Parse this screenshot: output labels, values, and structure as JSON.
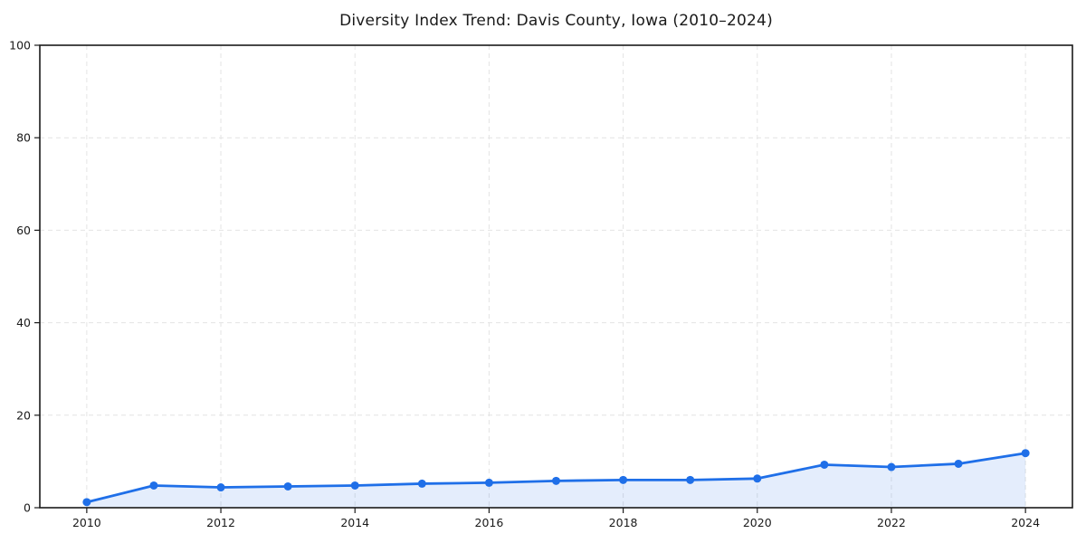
{
  "chart_data": {
    "type": "line",
    "title": "Diversity Index Trend: Davis County, Iowa (2010–2024)",
    "xlabel": "",
    "ylabel": "",
    "x": [
      2010,
      2011,
      2012,
      2013,
      2014,
      2015,
      2016,
      2017,
      2018,
      2019,
      2020,
      2021,
      2022,
      2023,
      2024
    ],
    "series": [
      {
        "name": "Diversity Index",
        "values": [
          1.2,
          4.8,
          4.4,
          4.6,
          4.8,
          5.2,
          5.4,
          5.8,
          6.0,
          6.0,
          6.3,
          9.3,
          8.8,
          9.5,
          11.8
        ]
      }
    ],
    "xticks": [
      2010,
      2012,
      2014,
      2016,
      2018,
      2020,
      2022,
      2024
    ],
    "yticks": [
      0,
      20,
      40,
      60,
      80,
      100
    ],
    "xlim": [
      2009.3,
      2024.7
    ],
    "ylim": [
      0,
      100
    ],
    "grid": true,
    "legend": "none",
    "area_fill": true,
    "marker": "circle",
    "colors": {
      "line": "#1f6fe8",
      "marker": "#1f6fe8",
      "area": "rgba(31, 111, 232, 0.12)",
      "grid": "#e4e4e4",
      "spine": "#1a1a1a",
      "background": "#ffffff"
    }
  }
}
